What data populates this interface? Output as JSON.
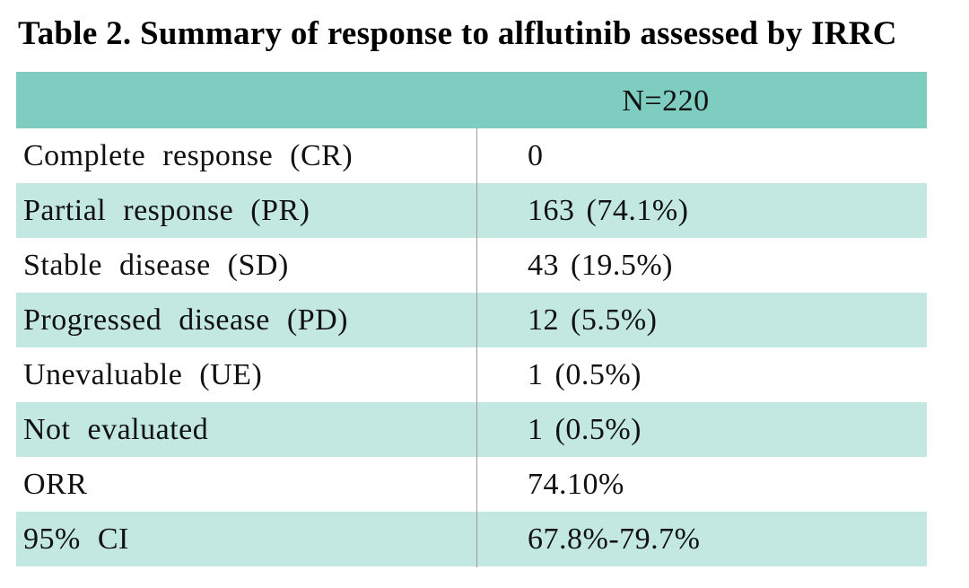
{
  "title": "Table 2. Summary of response to alflutinib assessed by IRRC",
  "table": {
    "header": "N=220",
    "rows": [
      [
        "Complete response (CR)",
        "0"
      ],
      [
        "Partial response (PR)",
        "163 (74.1%)"
      ],
      [
        "Stable disease (SD)",
        "43 (19.5%)"
      ],
      [
        "Progressed disease (PD)",
        "12 (5.5%)"
      ],
      [
        "Unevaluable (UE)",
        "1 (0.5%)"
      ],
      [
        "Not evaluated",
        "1 (0.5%)"
      ],
      [
        "ORR",
        "74.10%"
      ],
      [
        "95% CI",
        "67.8%-79.7%"
      ]
    ]
  }
}
